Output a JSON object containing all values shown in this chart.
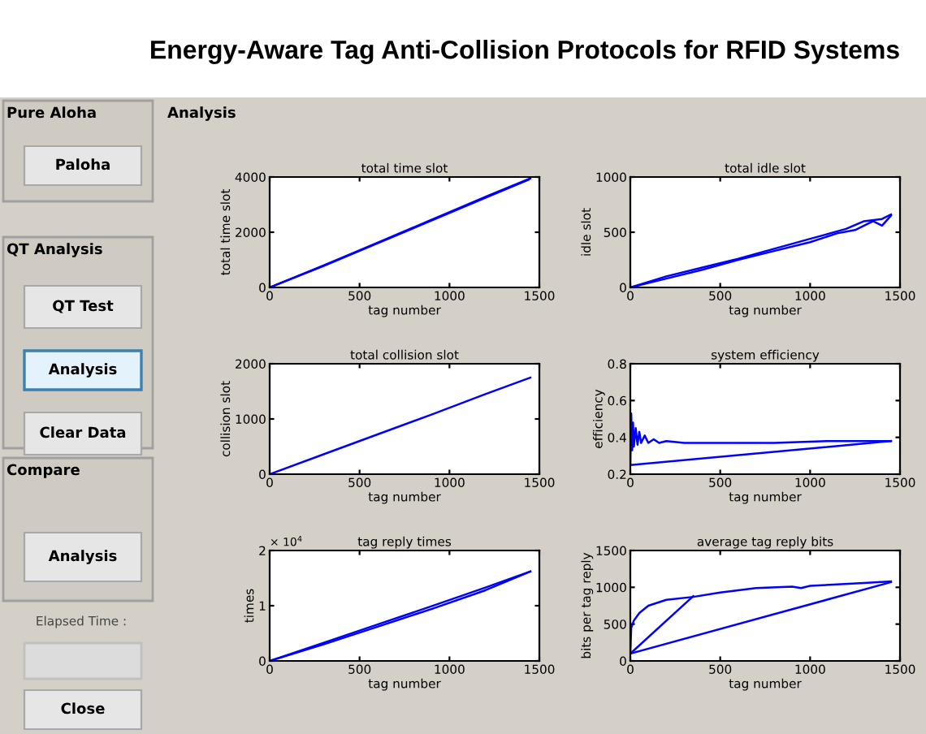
{
  "chart_data": [
    {
      "type": "other",
      "title": "Energy-Aware Tag Anti-Collision Protocols for RFID Systems",
      "annotations": [
        "Pure Aloha",
        "Paloha",
        "QT Analysis",
        "QT Test",
        "Analysis",
        "Clear Data",
        "Compare",
        "Analysis",
        "Elapsed Time :",
        "Close",
        "Analysis"
      ]
    },
    {
      "type": "line",
      "title": "total time slot",
      "ylabel": "total time slot",
      "xlabel": "tag number",
      "xlim": [
        0,
        1500
      ],
      "xticks": [
        0,
        500,
        1000,
        1500
      ],
      "ylim": [
        0,
        4000
      ],
      "yticks": [
        0,
        2000,
        4000
      ],
      "grid": false,
      "series": [
        {
          "color": "#0000ff",
          "x": [
            0,
            300,
            600,
            900,
            1200,
            1450
          ],
          "values": [
            0,
            800,
            1620,
            2450,
            3280,
            3950
          ]
        },
        {
          "color": "#0000ff",
          "x": [
            0,
            300,
            600,
            900,
            1200,
            1440
          ],
          "values": [
            0,
            780,
            1600,
            2420,
            3250,
            3900
          ]
        }
      ]
    },
    {
      "type": "line",
      "title": "total idle slot",
      "ylabel": "idle slot",
      "xlabel": "tag number",
      "xlim": [
        0,
        1500
      ],
      "xticks": [
        0,
        500,
        1000,
        1500
      ],
      "ylim": [
        0,
        1000
      ],
      "yticks": [
        0,
        500,
        1000
      ],
      "grid": false,
      "series": [
        {
          "color": "#0000ff",
          "x": [
            0,
            200,
            400,
            600,
            800,
            1000,
            1200,
            1300,
            1400,
            1450
          ],
          "values": [
            0,
            100,
            180,
            260,
            350,
            440,
            530,
            600,
            620,
            660
          ]
        },
        {
          "color": "#0000ff",
          "x": [
            0,
            200,
            400,
            600,
            800,
            1000,
            1150,
            1250,
            1350,
            1400,
            1450
          ],
          "values": [
            0,
            80,
            160,
            250,
            330,
            410,
            490,
            520,
            600,
            560,
            650
          ]
        }
      ]
    },
    {
      "type": "line",
      "title": "total collision slot",
      "ylabel": "collision slot",
      "xlabel": "tag number",
      "xlim": [
        0,
        1500
      ],
      "xticks": [
        0,
        500,
        1000,
        1500
      ],
      "ylim": [
        0,
        2000
      ],
      "yticks": [
        0,
        1000,
        2000
      ],
      "grid": false,
      "series": [
        {
          "color": "#0000ff",
          "x": [
            0,
            300,
            600,
            900,
            1200,
            1450
          ],
          "values": [
            0,
            360,
            720,
            1080,
            1450,
            1750
          ]
        }
      ]
    },
    {
      "type": "line",
      "title": "system efficiency",
      "ylabel": "efficiency",
      "xlabel": "tag number",
      "xlim": [
        0,
        1500
      ],
      "xticks": [
        0,
        500,
        1000,
        1500
      ],
      "ylim": [
        0.2,
        0.8
      ],
      "yticks": [
        0.2,
        0.4,
        0.6,
        0.8
      ],
      "grid": false,
      "series": [
        {
          "color": "#0000ff",
          "x": [
            0,
            5,
            10,
            15,
            20,
            30,
            40,
            50,
            60,
            80,
            100,
            130,
            160,
            200,
            300,
            500,
            800,
            1100,
            1300,
            1450
          ],
          "values": [
            0.25,
            0.53,
            0.33,
            0.48,
            0.35,
            0.45,
            0.36,
            0.43,
            0.37,
            0.41,
            0.37,
            0.39,
            0.37,
            0.38,
            0.37,
            0.37,
            0.37,
            0.38,
            0.38,
            0.38
          ]
        },
        {
          "color": "#0000ff",
          "x": [
            0,
            1450
          ],
          "values": [
            0.25,
            0.38
          ]
        }
      ]
    },
    {
      "type": "line",
      "title": "tag reply times",
      "ylabel": "times",
      "xlabel": "tag number",
      "annotations": [
        "× 10$^{4}$"
      ],
      "xlim": [
        0,
        1500
      ],
      "xticks": [
        0,
        500,
        1000,
        1500
      ],
      "ylim": [
        0,
        2
      ],
      "yticks": [
        0,
        1,
        2
      ],
      "grid": false,
      "series": [
        {
          "color": "#0000ff",
          "x": [
            0,
            300,
            600,
            900,
            1200,
            1450
          ],
          "values": [
            0,
            0.33,
            0.66,
            0.99,
            1.33,
            1.62
          ]
        },
        {
          "color": "#0000ff",
          "x": [
            0,
            300,
            600,
            900,
            1200,
            1450
          ],
          "values": [
            0,
            0.3,
            0.62,
            0.94,
            1.28,
            1.62
          ]
        }
      ]
    },
    {
      "type": "line",
      "title": "average tag reply bits",
      "ylabel": "bits per tag reply",
      "xlabel": "tag number",
      "xlim": [
        0,
        1500
      ],
      "xticks": [
        0,
        500,
        1000,
        1500
      ],
      "ylim": [
        0,
        1500
      ],
      "yticks": [
        0,
        500,
        1000,
        1500
      ],
      "grid": false,
      "series": [
        {
          "color": "#0000ff",
          "x": [
            0,
            5,
            20,
            50,
            100,
            200,
            350,
            500,
            700,
            900,
            950,
            1000,
            1300,
            1450
          ],
          "values": [
            100,
            450,
            550,
            650,
            750,
            830,
            870,
            930,
            990,
            1010,
            990,
            1020,
            1060,
            1080
          ]
        },
        {
          "color": "#0000ff",
          "x": [
            0,
            1450
          ],
          "values": [
            100,
            1070
          ]
        },
        {
          "color": "#0000ff",
          "x": [
            0,
            350
          ],
          "values": [
            100,
            880
          ]
        }
      ]
    }
  ]
}
